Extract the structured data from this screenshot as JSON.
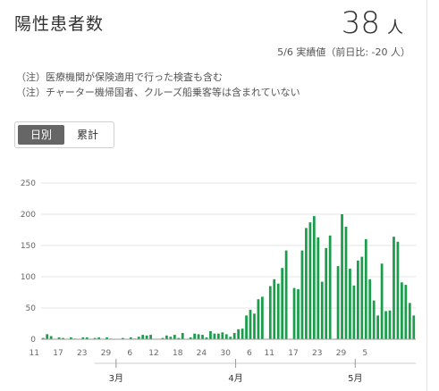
{
  "header": {
    "title": "陽性患者数",
    "total_value": "38",
    "total_unit": "人",
    "date_note": "5/6 実績値（前日比: -20 人）"
  },
  "notes": [
    "（注）医療機関が保険適用で行った検査も含む",
    "（注）チャーター機帰国者、クルーズ船乗客等は含まれていない"
  ],
  "tabs": [
    {
      "label": "日別",
      "active": true
    },
    {
      "label": "累計",
      "active": false
    }
  ],
  "colors": {
    "bar": "#1b9e4b",
    "grid": "#e6e6e6",
    "axis": "#999999"
  },
  "chart_data": {
    "type": "bar",
    "ylim": [
      0,
      250
    ],
    "yticks": [
      0,
      50,
      100,
      150,
      200,
      250
    ],
    "x_day_labels": [
      "11",
      "17",
      "23",
      "29",
      "6",
      "12",
      "18",
      "24",
      "30",
      "6",
      "11",
      "17",
      "23",
      "29",
      "5"
    ],
    "x_month_labels": [
      "3月",
      "4月",
      "5月"
    ],
    "grid": true,
    "values": [
      2,
      8,
      5,
      0,
      3,
      2,
      0,
      3,
      1,
      0,
      3,
      3,
      0,
      2,
      3,
      0,
      3,
      1,
      0,
      0,
      2,
      0,
      3,
      1,
      4,
      7,
      6,
      7,
      0,
      0,
      2,
      6,
      4,
      7,
      2,
      10,
      0,
      3,
      9,
      8,
      7,
      3,
      13,
      9,
      9,
      11,
      8,
      4,
      10,
      16,
      17,
      38,
      47,
      41,
      64,
      68,
      0,
      85,
      96,
      89,
      114,
      142,
      0,
      82,
      80,
      142,
      178,
      187,
      197,
      163,
      92,
      146,
      166,
      0,
      117,
      200,
      180,
      113,
      86,
      126,
      132,
      160,
      96,
      62,
      38,
      121,
      45,
      46,
      164,
      156,
      91,
      87,
      58,
      38
    ]
  }
}
